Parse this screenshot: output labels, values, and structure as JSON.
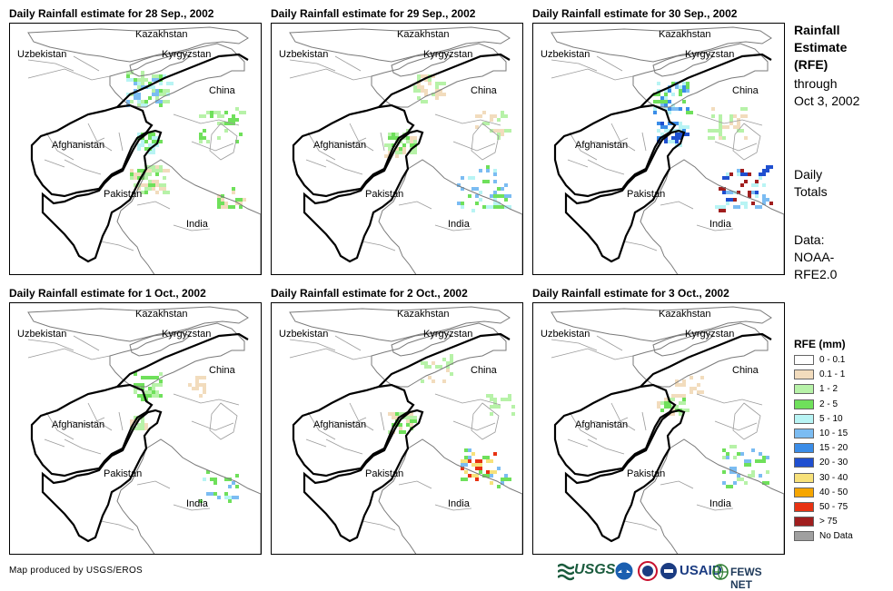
{
  "panels": [
    {
      "title": "Daily Rainfall estimate for 28 Sep., 2002"
    },
    {
      "title": "Daily Rainfall estimate for 29 Sep., 2002"
    },
    {
      "title": "Daily Rainfall estimate for 30 Sep., 2002"
    },
    {
      "title": "Daily Rainfall estimate for 1 Oct., 2002"
    },
    {
      "title": "Daily Rainfall estimate for 2 Oct., 2002"
    },
    {
      "title": "Daily Rainfall estimate for 3 Oct., 2002"
    }
  ],
  "map_labels": {
    "kazakhstan": "Kazakhstan",
    "uzbekistan": "Uzbekistan",
    "kyrgyzstan": "Kyrgyzstan",
    "china": "China",
    "afghanistan": "Afghanistan",
    "pakistan": "Pakistan",
    "india": "India"
  },
  "side_title": {
    "line1": "Rainfall",
    "line2": "Estimate",
    "line3": "(RFE)",
    "line4": "through",
    "line5": "Oct 3, 2002"
  },
  "side_totals": {
    "line1": "Daily",
    "line2": "Totals"
  },
  "side_data": {
    "line1": "Data:",
    "line2": "NOAA-",
    "line3": "RFE2.0"
  },
  "legend": {
    "title": "RFE (mm)",
    "items": [
      {
        "label": "0 - 0.1",
        "color": "#ffffff"
      },
      {
        "label": "0.1 - 1",
        "color": "#f2dcbd"
      },
      {
        "label": "1 - 2",
        "color": "#b7f2a8"
      },
      {
        "label": "2 - 5",
        "color": "#6fe05b"
      },
      {
        "label": "5 - 10",
        "color": "#b8f4f4"
      },
      {
        "label": "10 - 15",
        "color": "#7bbcf2"
      },
      {
        "label": "15 - 20",
        "color": "#3b8de8"
      },
      {
        "label": "20 - 30",
        "color": "#1f4fd0"
      },
      {
        "label": "30 - 40",
        "color": "#f7e17a"
      },
      {
        "label": "40 - 50",
        "color": "#f6a600"
      },
      {
        "label": "50 - 75",
        "color": "#e83212"
      },
      {
        "label": "> 75",
        "color": "#a01e1e"
      },
      {
        "label": "No Data",
        "color": "#a0a0a0"
      }
    ]
  },
  "credit": "Map produced by USGS/EROS",
  "logos": {
    "usgs": "USGS",
    "usaid": "USAID",
    "fews": "FEWS NET"
  }
}
